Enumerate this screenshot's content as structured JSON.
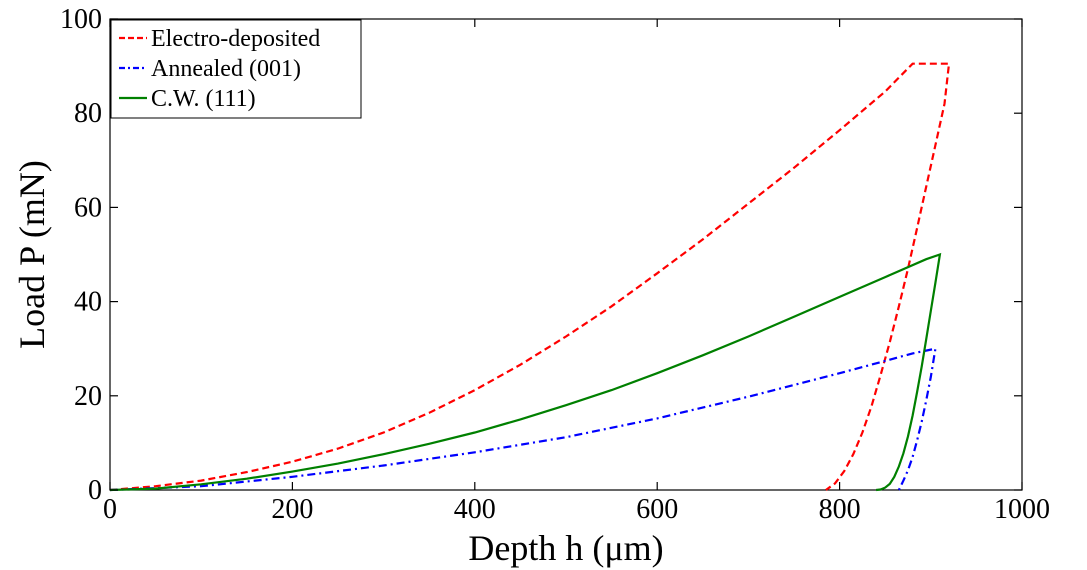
{
  "chart_data": {
    "type": "line",
    "title": "",
    "xlabel": "Depth h (μm)",
    "ylabel": "Load P (mN)",
    "xlim": [
      0,
      1000
    ],
    "ylim": [
      0,
      100
    ],
    "xticks": [
      0,
      200,
      400,
      600,
      800,
      1000
    ],
    "yticks": [
      0,
      20,
      40,
      60,
      80,
      100
    ],
    "xtick_labels": [
      "0",
      "200",
      "400",
      "600",
      "800",
      "1000"
    ],
    "ytick_labels": [
      "0",
      "20",
      "40",
      "60",
      "80",
      "100"
    ],
    "grid": false,
    "legend_position": "top-left",
    "series": [
      {
        "name": "Electro-deposited",
        "color": "#ff0000",
        "dash": "dashed",
        "x": [
          0,
          50,
          100,
          150,
          200,
          250,
          300,
          350,
          400,
          450,
          500,
          550,
          600,
          650,
          700,
          750,
          800,
          850,
          880,
          920,
          915,
          905,
          895,
          885,
          875,
          865,
          855,
          845,
          835,
          825,
          815,
          805,
          795,
          785
        ],
        "y": [
          0,
          0.8,
          2.0,
          3.8,
          6.0,
          8.8,
          12.2,
          16.4,
          21.2,
          26.6,
          32.6,
          39.0,
          46.0,
          53.2,
          60.8,
          68.4,
          76.4,
          84.6,
          90.5,
          90.5,
          82.0,
          73.2,
          64.4,
          55.6,
          47.0,
          39.0,
          31.4,
          24.4,
          17.8,
          12.2,
          7.6,
          4.0,
          1.4,
          0
        ]
      },
      {
        "name": "Annealed (001)",
        "color": "#0000ff",
        "dash": "dashdot",
        "x": [
          0,
          100,
          200,
          300,
          400,
          500,
          600,
          700,
          800,
          850,
          880,
          905,
          900,
          895,
          890,
          885,
          880,
          875,
          870,
          865
        ],
        "y": [
          0,
          0.8,
          2.8,
          5.2,
          8.0,
          11.2,
          15.2,
          19.8,
          24.8,
          27.4,
          29.0,
          30.0,
          24.0,
          19.0,
          14.5,
          10.5,
          7.0,
          4.2,
          2.0,
          0
        ]
      },
      {
        "name": "C.W. (111)",
        "color": "#008000",
        "dash": "solid",
        "x": [
          0,
          50,
          100,
          150,
          200,
          250,
          300,
          350,
          400,
          450,
          500,
          550,
          600,
          650,
          700,
          750,
          800,
          850,
          895,
          910,
          905,
          900,
          895,
          890,
          885,
          880,
          875,
          870,
          865,
          860,
          855,
          850,
          845,
          840
        ],
        "y": [
          0,
          0.3,
          1.2,
          2.4,
          3.9,
          5.6,
          7.6,
          9.8,
          12.2,
          15.0,
          18.0,
          21.2,
          24.8,
          28.6,
          32.6,
          36.8,
          41.0,
          45.2,
          49.0,
          50.0,
          44.0,
          38.0,
          32.0,
          26.2,
          20.8,
          15.8,
          11.4,
          7.8,
          5.0,
          2.8,
          1.3,
          0.5,
          0.1,
          0
        ]
      }
    ]
  }
}
